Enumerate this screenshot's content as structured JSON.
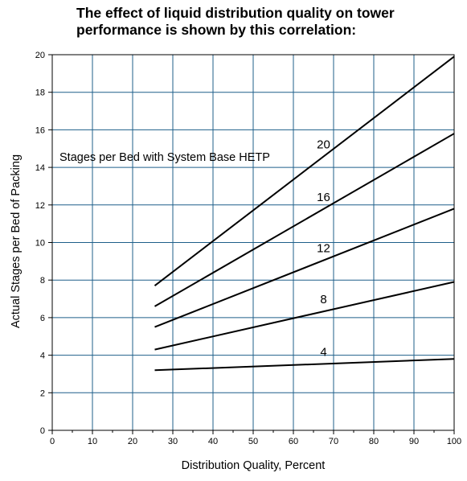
{
  "chart_data": {
    "type": "line",
    "title": "The effect of liquid distribution quality on tower performance is shown by this correlation:",
    "xlabel": "Distribution Quality, Percent",
    "ylabel": "Actual Stages per Bed of Packing",
    "xlim": [
      0,
      100
    ],
    "ylim": [
      0,
      20
    ],
    "xticks": [
      0,
      10,
      20,
      30,
      40,
      50,
      60,
      70,
      80,
      90,
      100
    ],
    "yticks": [
      0,
      2,
      4,
      6,
      8,
      10,
      12,
      14,
      16,
      18,
      20
    ],
    "grid": true,
    "annotation": "Stages per Bed with System Base HETP",
    "series": [
      {
        "name": "20",
        "x": [
          25.5,
          100
        ],
        "y": [
          7.7,
          19.9
        ]
      },
      {
        "name": "16",
        "x": [
          25.5,
          100
        ],
        "y": [
          6.6,
          15.8
        ]
      },
      {
        "name": "12",
        "x": [
          25.5,
          100
        ],
        "y": [
          5.5,
          11.8
        ]
      },
      {
        "name": "8",
        "x": [
          25.5,
          100
        ],
        "y": [
          4.3,
          7.9
        ]
      },
      {
        "name": "4",
        "x": [
          25.5,
          100
        ],
        "y": [
          3.2,
          3.8
        ]
      }
    ],
    "colors": {
      "line": "#000000",
      "grid": "#1f5f8a",
      "frame": "#000000"
    }
  }
}
